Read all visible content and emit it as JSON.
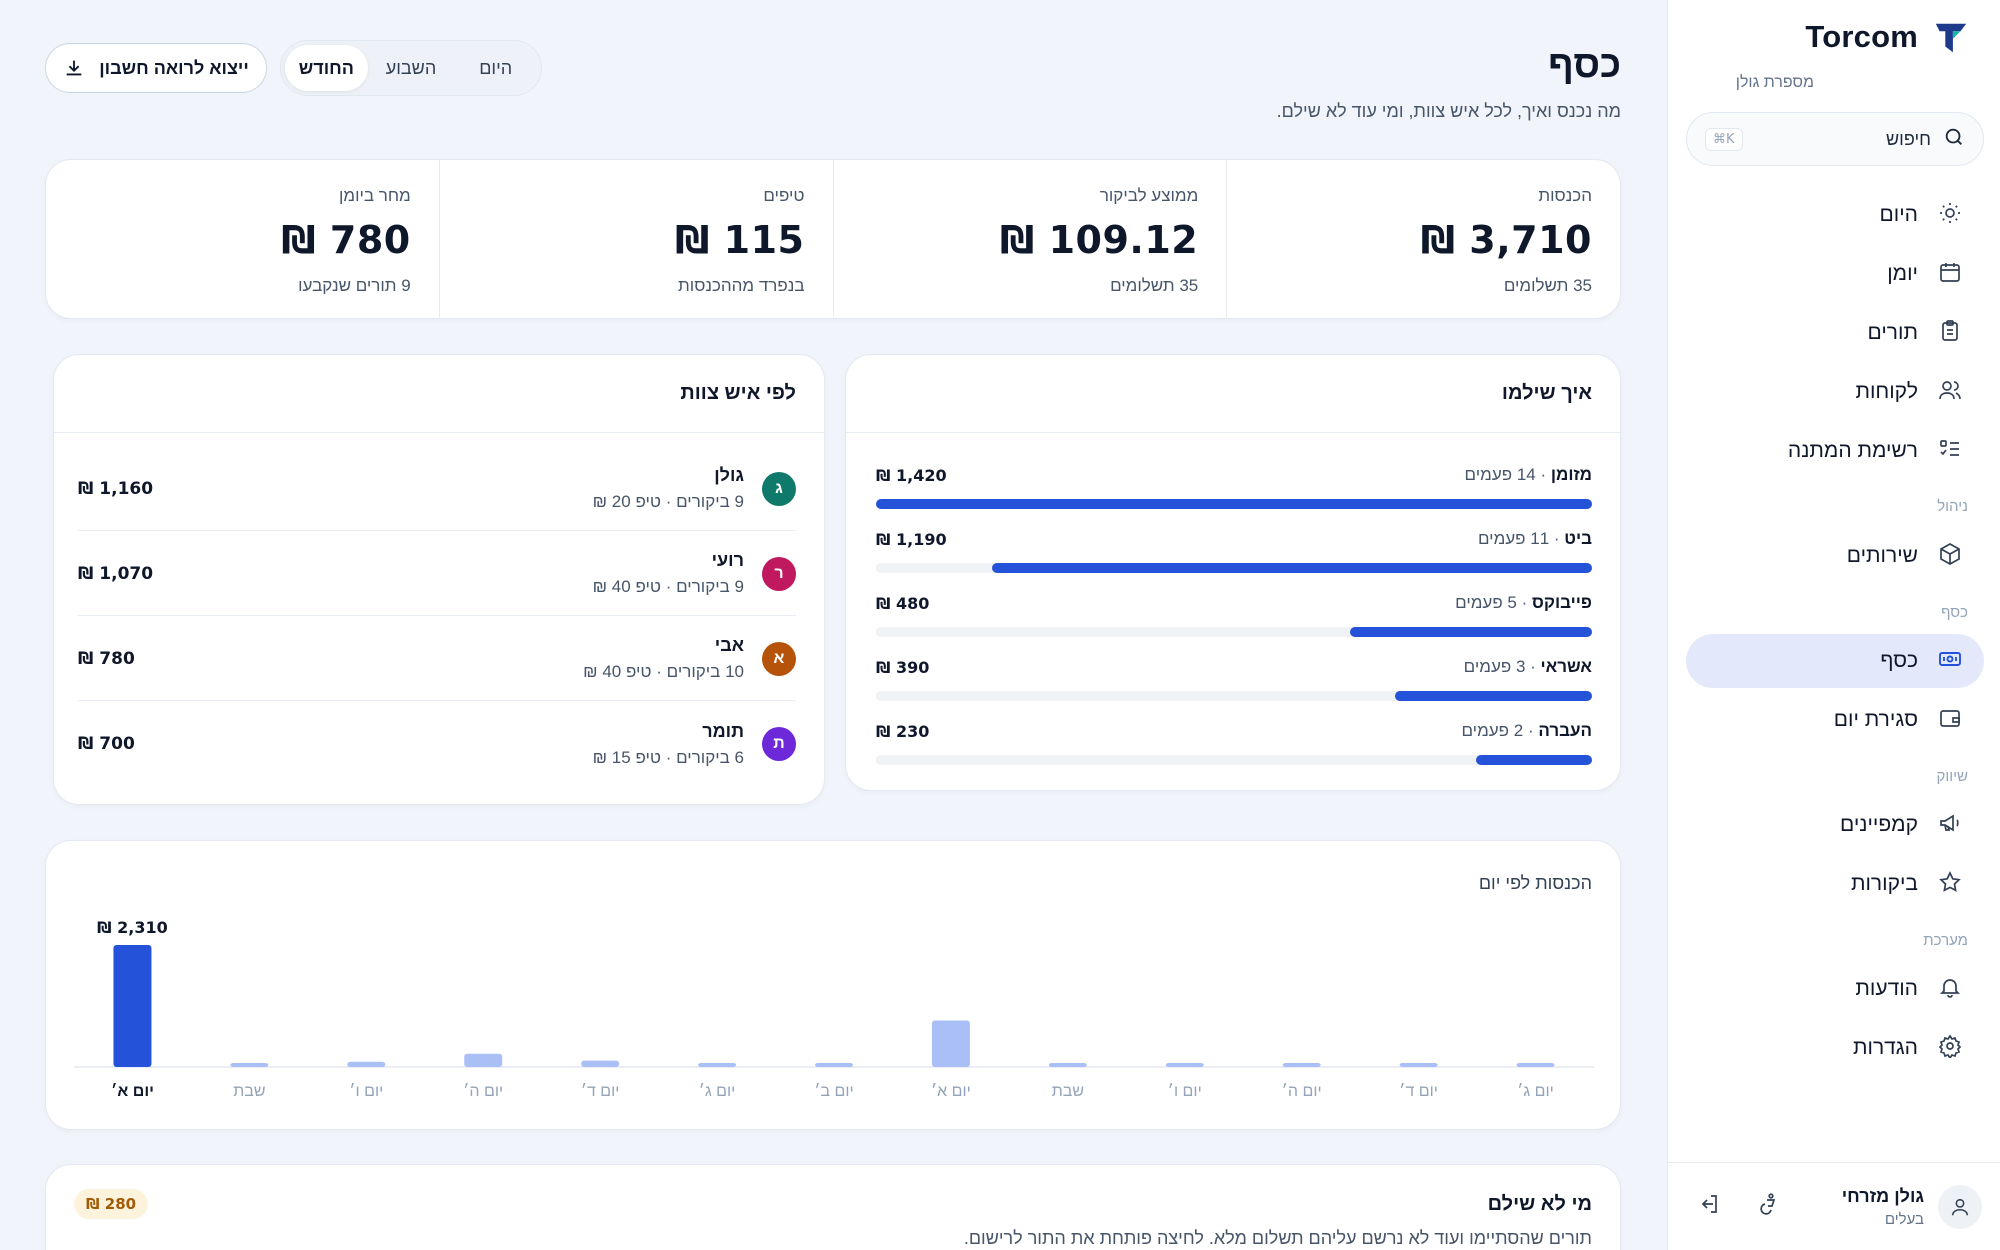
{
  "brand": {
    "name": "Torcom",
    "subtitle": "מספרת גולן"
  },
  "search": {
    "label": "חיפוש",
    "shortcut": "⌘K"
  },
  "nav": {
    "items": [
      {
        "label": "היום",
        "icon": "sun-icon"
      },
      {
        "label": "יומן",
        "icon": "calendar-icon"
      },
      {
        "label": "תורים",
        "icon": "clipboard-icon"
      },
      {
        "label": "לקוחות",
        "icon": "users-icon"
      },
      {
        "label": "רשימת המתנה",
        "icon": "list-checks-icon"
      },
      {
        "label": "שירותים",
        "icon": "box-icon"
      },
      {
        "label": "כסף",
        "icon": "banknote-icon",
        "active": true
      },
      {
        "label": "סגירת יום",
        "icon": "wallet-icon"
      },
      {
        "label": "קמפיינים",
        "icon": "megaphone-icon"
      },
      {
        "label": "ביקורות",
        "icon": "star-icon"
      },
      {
        "label": "הודעות",
        "icon": "bell-icon"
      },
      {
        "label": "הגדרות",
        "icon": "gear-icon"
      }
    ],
    "sections": {
      "manage": "ניהול",
      "money": "כסף",
      "marketing": "שיווק",
      "system": "מערכת"
    }
  },
  "user": {
    "name": "גולן מזרחי",
    "role": "בעלים"
  },
  "page": {
    "title": "כסף",
    "subtitle": "מה נכנס ואיך, לכל איש צוות, ומי עוד לא שילם."
  },
  "range_tabs": [
    {
      "label": "היום"
    },
    {
      "label": "השבוע"
    },
    {
      "label": "החודש",
      "active": true
    }
  ],
  "export_label": "ייצוא לרואה חשבון",
  "kpis": [
    {
      "label": "הכנסות",
      "value": "₪ 3,710",
      "note": "35 תשלומים"
    },
    {
      "label": "ממוצע לביקור",
      "value": "₪ 109.12",
      "note": "35 תשלומים"
    },
    {
      "label": "טיפים",
      "value": "₪ 115",
      "note": "בנפרד מההכנסות"
    },
    {
      "label": "מחר ביומן",
      "value": "₪ 780",
      "note": "9 תורים שנקבעו"
    }
  ],
  "payments": {
    "title": "איך שילמו",
    "rows": [
      {
        "name": "מזומן",
        "count": "14 פעמים",
        "amount": "₪ 1,420",
        "share": 1.0
      },
      {
        "name": "ביט",
        "count": "11 פעמים",
        "amount": "₪ 1,190",
        "share": 0.838
      },
      {
        "name": "פייבוקס",
        "count": "5 פעמים",
        "amount": "₪ 480",
        "share": 0.338
      },
      {
        "name": "אשראי",
        "count": "3 פעמים",
        "amount": "₪ 390",
        "share": 0.275
      },
      {
        "name": "העברה",
        "count": "2 פעמים",
        "amount": "₪ 230",
        "share": 0.162
      }
    ]
  },
  "staff": {
    "title": "לפי איש צוות",
    "rows": [
      {
        "initial": "ג",
        "name": "גולן",
        "meta": "9 ביקורים · טיפ 20 ₪",
        "amount": "₪ 1,160",
        "color": "#0f7a6b"
      },
      {
        "initial": "ר",
        "name": "רועי",
        "meta": "9 ביקורים · טיפ 40 ₪",
        "amount": "₪ 1,070",
        "color": "#c0195f"
      },
      {
        "initial": "א",
        "name": "אבי",
        "meta": "10 ביקורים · טיפ 40 ₪",
        "amount": "₪ 780",
        "color": "#b45309"
      },
      {
        "initial": "ת",
        "name": "תומר",
        "meta": "6 ביקורים · טיפ 15 ₪",
        "amount": "₪ 700",
        "color": "#6d28d9"
      }
    ]
  },
  "unpaid": {
    "title": "מי לא שילם",
    "subtitle": "תורים שהסתיימו ועוד לא נרשם עליהם תשלום מלא. לחיצה פותחת את התור לרישום.",
    "badge": "₪ 280"
  },
  "chart_data": {
    "type": "bar",
    "title": "הכנסות לפי יום",
    "categories": [
      "יום ג׳",
      "יום ד׳",
      "יום ה׳",
      "יום ו׳",
      "שבת",
      "יום א׳",
      "יום ב׳",
      "יום ג׳",
      "יום ד׳",
      "יום ה׳",
      "יום ו׳",
      "שבת",
      "יום א׳"
    ],
    "values": [
      0,
      0,
      0,
      0,
      0,
      880,
      0,
      0,
      120,
      250,
      100,
      0,
      2310
    ],
    "highlight_index": 12,
    "value_labels": {
      "12": "₪ 2,310"
    },
    "colors": {
      "highlight": "#2452d8",
      "normal": "#aabff5"
    }
  },
  "colors": {
    "accent": "#2452d8",
    "active_nav": "#e3e9fb"
  }
}
